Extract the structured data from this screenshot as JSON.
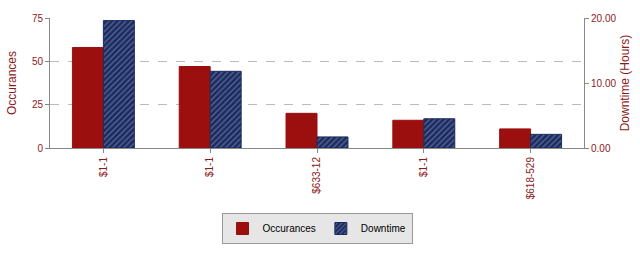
{
  "chart_data": {
    "type": "bar",
    "categories": [
      "$1-1",
      "$1-1",
      "$633-12",
      "$1-1",
      "$618-529"
    ],
    "series": [
      {
        "name": "Occurances",
        "color": "#9b0f0f",
        "values": [
          58,
          47,
          20,
          16,
          11
        ]
      },
      {
        "name": "Downtime",
        "color": "#1c2b5e",
        "values": [
          19.6,
          11.8,
          1.7,
          4.5,
          2.1
        ],
        "axis": "y2"
      }
    ],
    "ylabel": "Occurances",
    "y2label": "Downtime (Hours)",
    "ylim": [
      0,
      75
    ],
    "yticks": [
      0,
      25,
      50,
      75
    ],
    "y2lim": [
      0,
      20
    ],
    "y2ticks": [
      {
        "value": 0,
        "label": "0.00"
      },
      {
        "value": 10,
        "label": "10.00"
      },
      {
        "value": 20,
        "label": "20.00"
      }
    ],
    "grid": true,
    "legend": "bottom"
  }
}
